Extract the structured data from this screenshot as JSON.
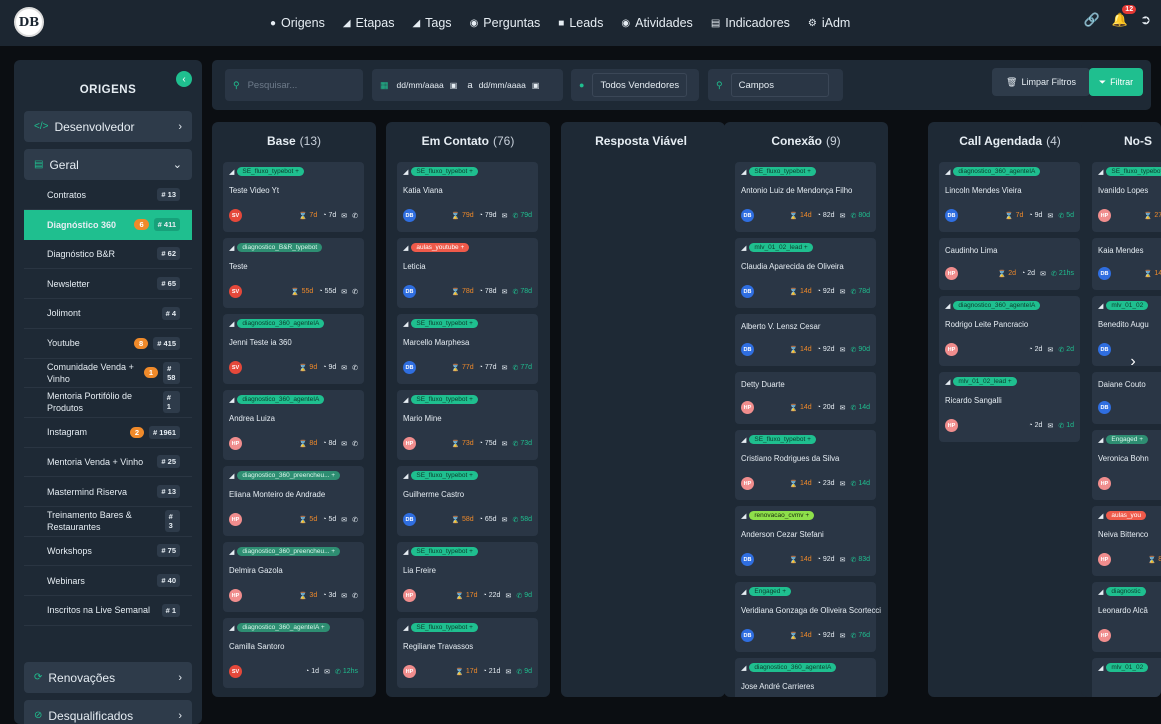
{
  "app": {
    "logo": "DB"
  },
  "nav": [
    {
      "label": "Origens",
      "icon": "pin-icon"
    },
    {
      "label": "Etapas",
      "icon": "tag-icon"
    },
    {
      "label": "Tags",
      "icon": "tags-icon"
    },
    {
      "label": "Perguntas",
      "icon": "chat-icon"
    },
    {
      "label": "Leads",
      "icon": "users-icon"
    },
    {
      "label": "Atividades",
      "icon": "compass-icon"
    },
    {
      "label": "Indicadores",
      "icon": "chart-icon"
    },
    {
      "label": "iAdm",
      "icon": "gear-icon"
    }
  ],
  "top_right": {
    "notifications": "12"
  },
  "sidebar": {
    "title": "ORIGENS",
    "sections": [
      {
        "label": "Desenvolvedor"
      },
      {
        "label": "Geral"
      },
      {
        "label": "Renovações"
      },
      {
        "label": "Desqualificados"
      }
    ],
    "items": [
      {
        "label": "Contratos",
        "count": "# 13",
        "flag": ""
      },
      {
        "label": "Diagnóstico 360",
        "count": "# 411",
        "flag": "6"
      },
      {
        "label": "Diagnóstico B&R",
        "count": "# 62",
        "flag": ""
      },
      {
        "label": "Newsletter",
        "count": "# 65",
        "flag": ""
      },
      {
        "label": "Jolimont",
        "count": "# 4",
        "flag": ""
      },
      {
        "label": "Youtube",
        "count": "# 415",
        "flag": "8"
      },
      {
        "label": "Comunidade Venda + Vinho",
        "count": "# 58",
        "flag": "1"
      },
      {
        "label": "Mentoria Portifólio de Produtos",
        "count": "# 1",
        "flag": ""
      },
      {
        "label": "Instagram",
        "count": "# 1961",
        "flag": "2"
      },
      {
        "label": "Mentoria Venda + Vinho",
        "count": "# 25",
        "flag": ""
      },
      {
        "label": "Mastermind Riserva",
        "count": "# 13",
        "flag": ""
      },
      {
        "label": "Treinamento Bares & Restaurantes",
        "count": "# 3",
        "flag": ""
      },
      {
        "label": "Workshops",
        "count": "# 75",
        "flag": ""
      },
      {
        "label": "Webinars",
        "count": "# 40",
        "flag": ""
      },
      {
        "label": "Inscritos na Live Semanal",
        "count": "# 1",
        "flag": ""
      }
    ]
  },
  "filters": {
    "search_placeholder": "Pesquisar...",
    "date_from": "dd/mm/aaaa",
    "date_sep": "a",
    "date_to": "dd/mm/aaaa",
    "sellers": "Todos Vendedores",
    "fields": "Campos",
    "clear_label": "Limpar Filtros",
    "filter_label": "Filtrar"
  },
  "columns": [
    {
      "title": "Base",
      "count": "(13)",
      "cards": [
        {
          "tag": "SE_fluxo_typebot +",
          "tagc": "",
          "name": "Teste Video Yt",
          "av": "SV",
          "a": "7d",
          "b": "7d",
          "c": ""
        },
        {
          "tag": "diagnostico_B&R_typebot",
          "tagc": "gray",
          "name": "Teste",
          "av": "SV",
          "a": "55d",
          "b": "55d",
          "c": ""
        },
        {
          "tag": "diagnostico_360_agenteIA",
          "tagc": "",
          "name": "Jenni Teste ia 360",
          "av": "SV",
          "a": "9d",
          "b": "9d",
          "c": ""
        },
        {
          "tag": "diagnostico_360_agenteIA",
          "tagc": "",
          "name": "Andrea Luiza",
          "av": "HP",
          "a": "8d",
          "b": "8d",
          "c": ""
        },
        {
          "tag": "diagnostico_360_preencheu... +",
          "tagc": "gray",
          "name": "Eliana Monteiro de Andrade",
          "av": "HP",
          "a": "5d",
          "b": "5d",
          "c": ""
        },
        {
          "tag": "diagnostico_360_preencheu... +",
          "tagc": "gray",
          "name": "Delmira Gazola",
          "av": "HP",
          "a": "3d",
          "b": "3d",
          "c": ""
        },
        {
          "tag": "diagnostico_360_agenteIA +",
          "tagc": "gray",
          "name": "Camilla Santoro",
          "av": "SV",
          "a": "",
          "b": "1d",
          "c": "12hs"
        }
      ]
    },
    {
      "title": "Em Contato",
      "count": "(76)",
      "cards": [
        {
          "tag": "SE_fluxo_typebot +",
          "tagc": "",
          "name": "Katia Viana",
          "av": "DB",
          "a": "79d",
          "b": "79d",
          "c": "79d"
        },
        {
          "tag": "aulas_youtube +",
          "tagc": "red",
          "name": "Leticia",
          "av": "DB",
          "a": "78d",
          "b": "78d",
          "c": "78d"
        },
        {
          "tag": "SE_fluxo_typebot +",
          "tagc": "",
          "name": "Marcello Marphesa",
          "av": "DB",
          "a": "77d",
          "b": "77d",
          "c": "77d"
        },
        {
          "tag": "SE_fluxo_typebot +",
          "tagc": "",
          "name": "Mario Mine",
          "av": "HP",
          "a": "73d",
          "b": "75d",
          "c": "73d"
        },
        {
          "tag": "SE_fluxo_typebot +",
          "tagc": "",
          "name": "Guilherme Castro",
          "av": "DB",
          "a": "58d",
          "b": "65d",
          "c": "58d"
        },
        {
          "tag": "SE_fluxo_typebot +",
          "tagc": "",
          "name": "Lia Freire",
          "av": "HP",
          "a": "17d",
          "b": "22d",
          "c": "9d"
        },
        {
          "tag": "SE_fluxo_typebot +",
          "tagc": "",
          "name": "Regiliane Travassos",
          "av": "HP",
          "a": "17d",
          "b": "21d",
          "c": "9d"
        }
      ]
    },
    {
      "title": "Resposta Viável",
      "count": "",
      "cards": []
    },
    {
      "title": "Conexão",
      "count": "(9)",
      "cards": [
        {
          "tag": "SE_fluxo_typebot +",
          "tagc": "",
          "name": "Antonio Luiz de Mendonça Filho",
          "av": "DB",
          "a": "14d",
          "b": "82d",
          "c": "80d"
        },
        {
          "tag": "mlv_01_02_lead +",
          "tagc": "",
          "name": "Claudia Aparecida de Oliveira",
          "av": "DB",
          "a": "14d",
          "b": "92d",
          "c": "78d"
        },
        {
          "tag": "",
          "tagc": "",
          "name": "Alberto V. Lensz Cesar",
          "av": "DB",
          "a": "14d",
          "b": "92d",
          "c": "90d"
        },
        {
          "tag": "",
          "tagc": "",
          "name": "Detty Duarte",
          "av": "HP",
          "a": "14d",
          "b": "20d",
          "c": "14d"
        },
        {
          "tag": "SE_fluxo_typebot +",
          "tagc": "",
          "name": "Cristiano Rodrigues da Silva",
          "av": "HP",
          "a": "14d",
          "b": "23d",
          "c": "14d"
        },
        {
          "tag": "renovacao_cvmv +",
          "tagc": "lime",
          "name": "Anderson Cezar Stefani",
          "av": "DB",
          "a": "14d",
          "b": "92d",
          "c": "83d"
        },
        {
          "tag": "Engaged +",
          "tagc": "",
          "name": "Veridiana Gonzaga de Oliveira Scortecci",
          "av": "DB",
          "a": "14d",
          "b": "92d",
          "c": "76d"
        },
        {
          "tag": "diagnostico_360_agenteIA",
          "tagc": "",
          "name": "Jose André Carrieres",
          "av": "",
          "a": "",
          "b": "",
          "c": ""
        }
      ]
    },
    {
      "title": "Call Agendada",
      "count": "(4)",
      "cards": [
        {
          "tag": "diagnostico_360_agenteIA",
          "tagc": "",
          "name": "Lincoln Mendes Vieira",
          "av": "DB",
          "a": "7d",
          "b": "9d",
          "c": "5d"
        },
        {
          "tag": "",
          "tagc": "",
          "name": "Caudinho Lima",
          "av": "HP",
          "a": "2d",
          "b": "2d",
          "c": "21hs"
        },
        {
          "tag": "diagnostico_360_agenteIA",
          "tagc": "",
          "name": "Rodrigo Leite Pancracio",
          "av": "HP",
          "a": "",
          "b": "2d",
          "c": "2d"
        },
        {
          "tag": "mlv_01_02_lead +",
          "tagc": "",
          "name": "Ricardo Sangalli",
          "av": "HP",
          "a": "",
          "b": "2d",
          "c": "1d"
        }
      ]
    },
    {
      "title": "No-S",
      "count": "",
      "cards": [
        {
          "tag": "SE_fluxo_typebot",
          "tagc": "",
          "name": "Ivanildo Lopes",
          "av": "HP",
          "a": "27d",
          "b": "",
          "c": ""
        },
        {
          "tag": "",
          "tagc": "",
          "name": "Kaia Mendes",
          "av": "DB",
          "a": "14d",
          "b": "",
          "c": ""
        },
        {
          "tag": "mlv_01_02",
          "tagc": "",
          "name": "Benedito Augu",
          "av": "DB",
          "a": "",
          "b": "",
          "c": ""
        },
        {
          "tag": "",
          "tagc": "",
          "name": "Daiane Couto",
          "av": "DB",
          "a": "",
          "b": "",
          "c": ""
        },
        {
          "tag": "Engaged +",
          "tagc": "gray",
          "name": "Veronica Bohn",
          "av": "HP",
          "a": "",
          "b": "",
          "c": ""
        },
        {
          "tag": "aulas_you",
          "tagc": "red",
          "name": "Neiva Bittenco",
          "av": "HP",
          "a": "8d",
          "b": "",
          "c": ""
        },
        {
          "tag": "diagnostic",
          "tagc": "",
          "name": "Leonardo Alcâ",
          "av": "HP",
          "a": "",
          "b": "",
          "c": ""
        },
        {
          "tag": "mlv_01_02",
          "tagc": "",
          "name": "",
          "av": "",
          "a": "",
          "b": "",
          "c": ""
        }
      ]
    }
  ]
}
